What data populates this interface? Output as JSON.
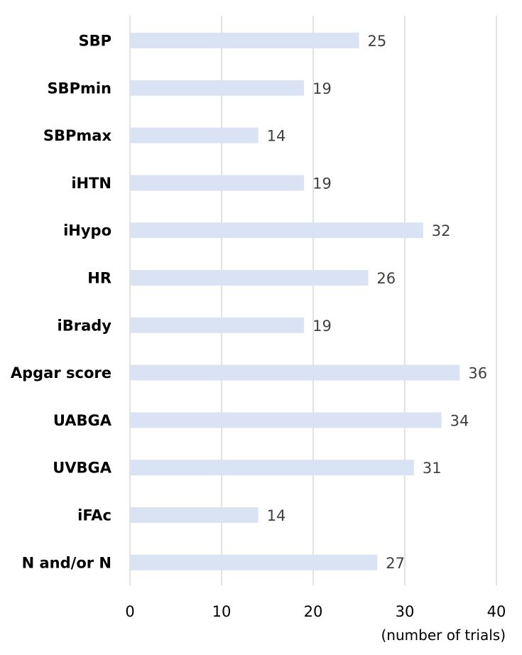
{
  "colors": {
    "bar": "#dae3f3",
    "grid": "#d9d9d9",
    "value_text": "#404040"
  },
  "chart_data": {
    "type": "bar",
    "orientation": "horizontal",
    "categories": [
      "SBP",
      "SBPmin",
      "SBPmax",
      "iHTN",
      "iHypo",
      "HR",
      "iBrady",
      "Apgar score",
      "UABGA",
      "UVBGA",
      "iFAc",
      "N and/or N"
    ],
    "values": [
      25,
      19,
      14,
      19,
      32,
      26,
      19,
      36,
      34,
      31,
      14,
      27
    ],
    "xlim": [
      0,
      40
    ],
    "xticks": [
      0,
      10,
      20,
      30,
      40
    ],
    "xlabel": "(number of trials)",
    "title": "",
    "ylabel": "",
    "grid": true,
    "legend": "none"
  }
}
